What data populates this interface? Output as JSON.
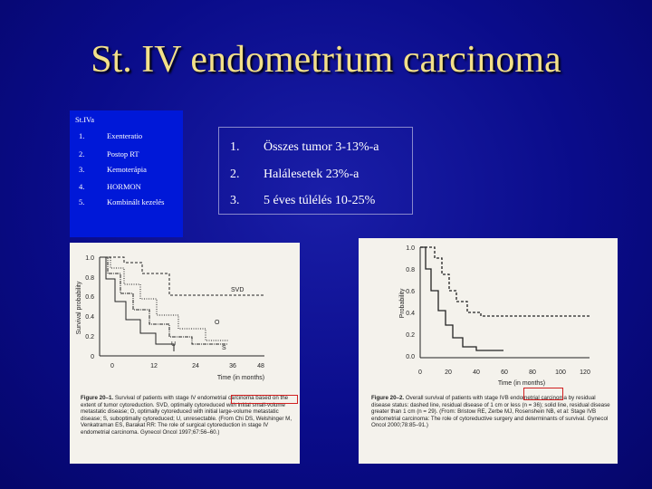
{
  "slide": {
    "title": "St. IV endometrium carcinoma",
    "left_box": {
      "header": "St.IVa",
      "items": [
        {
          "num": "1.",
          "text": "Exenteratio"
        },
        {
          "num": "2.",
          "text": "Postop RT"
        },
        {
          "num": "3.",
          "text": "Kemoterápia"
        },
        {
          "num": "4.",
          "text": "HORMON"
        },
        {
          "num": "5.",
          "text": "Kombinált kezelés"
        }
      ]
    },
    "right_box": {
      "items": [
        {
          "num": "1.",
          "text": "Összes tumor 3-13%-a"
        },
        {
          "num": "2.",
          "text": "Halálesetek 23%-a"
        },
        {
          "num": "3.",
          "text": "5 éves túlélés 10-25%"
        }
      ]
    },
    "figure1": {
      "ylabel": "Survival probability",
      "xlabel": "Time (in months)",
      "yticks": [
        "1.0",
        "0.8",
        "0.6",
        "0.4",
        "0.2",
        "0"
      ],
      "xticks": [
        "0",
        "12",
        "24",
        "36",
        "48"
      ],
      "curve_labels": [
        "SVD",
        "O",
        "U",
        "S"
      ],
      "caption_lead": "Figure 20–1.",
      "caption": "Survival of patients with stage IV endometrial carcinoma based on the extent of tumor cytoreduction. SVD, optimally cytoreduced with initial small-volume metastatic disease; O, optimally cytoreduced with initial large-volume metastatic disease; S, suboptimally cytoreduced; U, unresectable. (From Chi DS, Welshinger M, Venkatraman ES, Barakat RR: The role of surgical cytoreduction in stage IV endometrial carcinoma. Gynecol Oncol 1997;67:56–60.)"
    },
    "figure2": {
      "ylabel": "Probability",
      "xlabel": "Time (in months)",
      "yticks": [
        "1.0",
        "0.8",
        "0.6",
        "0.4",
        "0.2",
        "0.0"
      ],
      "xticks": [
        "0",
        "20",
        "40",
        "60",
        "80",
        "100",
        "120"
      ],
      "caption_lead": "Figure 20–2.",
      "caption": "Overall survival of patients with stage IVB endometrial carcinoma by residual disease status: dashed line, residual disease of 1 cm or less (n = 36); solid line, residual disease greater than 1 cm (n = 29). (From: Bristow RE, Zerbe MJ, Rosenshein NB, et al: Stage IVB endometrial carcinoma: The role of cytoreductive surgery and determinants of survival. Gynecol Oncol 2000;78:85–91.)"
    }
  }
}
